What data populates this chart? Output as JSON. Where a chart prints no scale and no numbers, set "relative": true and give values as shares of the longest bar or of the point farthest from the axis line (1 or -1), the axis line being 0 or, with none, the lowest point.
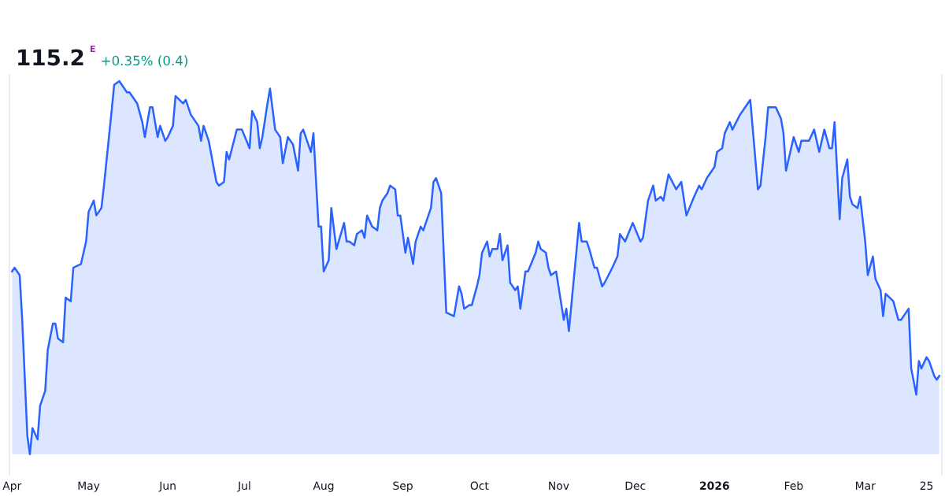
{
  "chart_data": {
    "type": "area",
    "relative": true,
    "tick_labels": "x",
    "grid": false,
    "xlim": [
      "2025-03-31",
      "2026-03-31"
    ],
    "annotations": [
      "115.2",
      "E",
      "+0.35% (0.4)"
    ],
    "xticks": [
      {
        "value": "2025-04-01",
        "label": "Apr"
      },
      {
        "value": "2025-05-01",
        "label": "May"
      },
      {
        "value": "2025-06-01",
        "label": "Jun"
      },
      {
        "value": "2025-07-01",
        "label": "Jul"
      },
      {
        "value": "2025-08-01",
        "label": "Aug"
      },
      {
        "value": "2025-09-01",
        "label": "Sep"
      },
      {
        "value": "2025-10-01",
        "label": "Oct"
      },
      {
        "value": "2025-11-01",
        "label": "Nov"
      },
      {
        "value": "2025-12-01",
        "label": "Dec"
      },
      {
        "value": "2026-01-01",
        "label": "2026"
      },
      {
        "value": "2026-02-01",
        "label": "Feb"
      },
      {
        "value": "2026-03-01",
        "label": "Mar"
      },
      {
        "value": "2026-03-25",
        "label": "25"
      }
    ],
    "series": [
      {
        "color": "#2962ff",
        "x": [
          "2025-04-01",
          "2025-04-02",
          "2025-04-04",
          "2025-04-05",
          "2025-04-07",
          "2025-04-08",
          "2025-04-09",
          "2025-04-11",
          "2025-04-12",
          "2025-04-14",
          "2025-04-15",
          "2025-04-17",
          "2025-04-18",
          "2025-04-19",
          "2025-04-21",
          "2025-04-22",
          "2025-04-24",
          "2025-04-25",
          "2025-04-28",
          "2025-04-30",
          "2025-05-01",
          "2025-05-03",
          "2025-05-04",
          "2025-05-06",
          "2025-05-07",
          "2025-05-10",
          "2025-05-11",
          "2025-05-13",
          "2025-05-14",
          "2025-05-16",
          "2025-05-17",
          "2025-05-20",
          "2025-05-22",
          "2025-05-23",
          "2025-05-25",
          "2025-05-26",
          "2025-05-28",
          "2025-05-29",
          "2025-05-31",
          "2025-06-01",
          "2025-06-03",
          "2025-06-04",
          "2025-06-07",
          "2025-06-08",
          "2025-06-10",
          "2025-06-13",
          "2025-06-14",
          "2025-06-15",
          "2025-06-17",
          "2025-06-20",
          "2025-06-21",
          "2025-06-23",
          "2025-06-24",
          "2025-06-25",
          "2025-06-28",
          "2025-06-30",
          "2025-07-03",
          "2025-07-04",
          "2025-07-06",
          "2025-07-07",
          "2025-07-08",
          "2025-07-10",
          "2025-07-11",
          "2025-07-13",
          "2025-07-15",
          "2025-07-16",
          "2025-07-18",
          "2025-07-20",
          "2025-07-22",
          "2025-07-23",
          "2025-07-24",
          "2025-07-27",
          "2025-07-28",
          "2025-07-30",
          "2025-07-31",
          "2025-08-01",
          "2025-08-03",
          "2025-08-04",
          "2025-08-06",
          "2025-08-09",
          "2025-08-10",
          "2025-08-11",
          "2025-08-13",
          "2025-08-14",
          "2025-08-16",
          "2025-08-17",
          "2025-08-18",
          "2025-08-20",
          "2025-08-22",
          "2025-08-23",
          "2025-08-24",
          "2025-08-26",
          "2025-08-27",
          "2025-08-29",
          "2025-08-30",
          "2025-08-31",
          "2025-09-02",
          "2025-09-03",
          "2025-09-05",
          "2025-09-06",
          "2025-09-08",
          "2025-09-09",
          "2025-09-10",
          "2025-09-12",
          "2025-09-13",
          "2025-09-14",
          "2025-09-16",
          "2025-09-18",
          "2025-09-21",
          "2025-09-23",
          "2025-09-24",
          "2025-09-25",
          "2025-09-27",
          "2025-09-28",
          "2025-09-30",
          "2025-10-01",
          "2025-10-02",
          "2025-10-04",
          "2025-10-05",
          "2025-10-06",
          "2025-10-08",
          "2025-10-09",
          "2025-10-10",
          "2025-10-12",
          "2025-10-13",
          "2025-10-15",
          "2025-10-16",
          "2025-10-17",
          "2025-10-19",
          "2025-10-20",
          "2025-10-23",
          "2025-10-24",
          "2025-10-25",
          "2025-10-27",
          "2025-10-28",
          "2025-10-29",
          "2025-10-31",
          "2025-11-03",
          "2025-11-04",
          "2025-11-05",
          "2025-11-09",
          "2025-11-10",
          "2025-11-12",
          "2025-11-13",
          "2025-11-15",
          "2025-11-16",
          "2025-11-18",
          "2025-11-19",
          "2025-11-22",
          "2025-11-24",
          "2025-11-25",
          "2025-11-27",
          "2025-11-30",
          "2025-12-03",
          "2025-12-04",
          "2025-12-06",
          "2025-12-08",
          "2025-12-09",
          "2025-12-11",
          "2025-12-12",
          "2025-12-14",
          "2025-12-17",
          "2025-12-19",
          "2025-12-21",
          "2025-12-24",
          "2025-12-26",
          "2025-12-27",
          "2025-12-29",
          "2025-12-31",
          "2026-01-01",
          "2026-01-02",
          "2026-01-04",
          "2026-01-05",
          "2026-01-07",
          "2026-01-08",
          "2026-01-11",
          "2026-01-13",
          "2026-01-14",
          "2026-01-15",
          "2026-01-18",
          "2026-01-19",
          "2026-01-21",
          "2026-01-22",
          "2026-01-25",
          "2026-01-27",
          "2026-01-28",
          "2026-01-29",
          "2026-01-31",
          "2026-02-01",
          "2026-02-03",
          "2026-02-04",
          "2026-02-05",
          "2026-02-07",
          "2026-02-09",
          "2026-02-11",
          "2026-02-13",
          "2026-02-15",
          "2026-02-16",
          "2026-02-17",
          "2026-02-19",
          "2026-02-20",
          "2026-02-22",
          "2026-02-23",
          "2026-02-24",
          "2026-02-26",
          "2026-02-27",
          "2026-03-01",
          "2026-03-02",
          "2026-03-04",
          "2026-03-05",
          "2026-03-07",
          "2026-03-08",
          "2026-03-09",
          "2026-03-12",
          "2026-03-14",
          "2026-03-15",
          "2026-03-18",
          "2026-03-19",
          "2026-03-21",
          "2026-03-22",
          "2026-03-23",
          "2026-03-25",
          "2026-03-26",
          "2026-03-28",
          "2026-03-29",
          "2026-03-30"
        ],
        "values": [
          0.49,
          0.5,
          0.48,
          0.36,
          0.05,
          0.0,
          0.07,
          0.04,
          0.13,
          0.17,
          0.28,
          0.35,
          0.35,
          0.31,
          0.3,
          0.42,
          0.41,
          0.5,
          0.51,
          0.57,
          0.65,
          0.68,
          0.64,
          0.66,
          0.72,
          0.92,
          0.99,
          1.0,
          0.99,
          0.97,
          0.97,
          0.94,
          0.89,
          0.85,
          0.93,
          0.93,
          0.85,
          0.88,
          0.84,
          0.85,
          0.88,
          0.96,
          0.94,
          0.95,
          0.91,
          0.88,
          0.84,
          0.88,
          0.84,
          0.73,
          0.72,
          0.73,
          0.81,
          0.79,
          0.87,
          0.87,
          0.82,
          0.92,
          0.89,
          0.82,
          0.85,
          0.94,
          0.98,
          0.87,
          0.85,
          0.78,
          0.85,
          0.83,
          0.76,
          0.86,
          0.87,
          0.81,
          0.86,
          0.61,
          0.61,
          0.49,
          0.52,
          0.66,
          0.55,
          0.62,
          0.57,
          0.57,
          0.56,
          0.59,
          0.6,
          0.58,
          0.64,
          0.61,
          0.6,
          0.66,
          0.68,
          0.7,
          0.72,
          0.71,
          0.64,
          0.64,
          0.54,
          0.58,
          0.51,
          0.57,
          0.61,
          0.6,
          0.62,
          0.66,
          0.73,
          0.74,
          0.7,
          0.38,
          0.37,
          0.45,
          0.43,
          0.39,
          0.4,
          0.4,
          0.45,
          0.48,
          0.54,
          0.57,
          0.53,
          0.55,
          0.55,
          0.59,
          0.52,
          0.56,
          0.46,
          0.44,
          0.45,
          0.39,
          0.49,
          0.49,
          0.54,
          0.57,
          0.55,
          0.54,
          0.5,
          0.48,
          0.49,
          0.36,
          0.39,
          0.33,
          0.62,
          0.57,
          0.57,
          0.55,
          0.5,
          0.5,
          0.45,
          0.46,
          0.5,
          0.53,
          0.59,
          0.57,
          0.62,
          0.57,
          0.58,
          0.68,
          0.72,
          0.68,
          0.69,
          0.68,
          0.75,
          0.71,
          0.73,
          0.64,
          0.69,
          0.72,
          0.71,
          0.74,
          0.76,
          0.77,
          0.81,
          0.82,
          0.86,
          0.89,
          0.87,
          0.91,
          0.93,
          0.94,
          0.95,
          0.71,
          0.72,
          0.85,
          0.93,
          0.93,
          0.9,
          0.86,
          0.76,
          0.82,
          0.85,
          0.81,
          0.84,
          0.84,
          0.84,
          0.87,
          0.81,
          0.87,
          0.82,
          0.82,
          0.89,
          0.63,
          0.74,
          0.79,
          0.69,
          0.67,
          0.66,
          0.69,
          0.57,
          0.48,
          0.53,
          0.47,
          0.44,
          0.37,
          0.43,
          0.41,
          0.36,
          0.36,
          0.39,
          0.23,
          0.16,
          0.25,
          0.23,
          0.26,
          0.25,
          0.21,
          0.2,
          0.21
        ]
      }
    ]
  }
}
